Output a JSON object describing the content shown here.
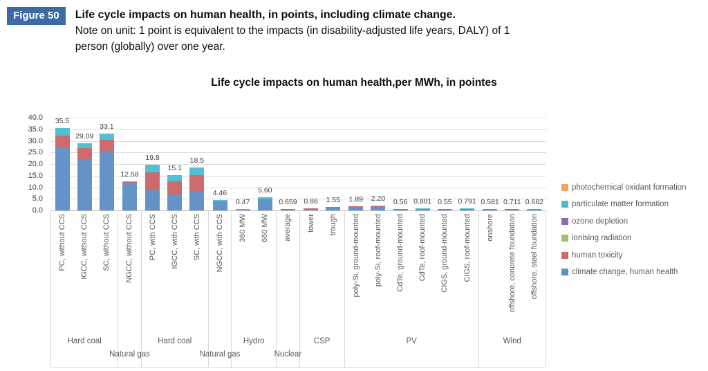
{
  "header": {
    "badge": "Figure 50",
    "title": "Life cycle impacts on human health, in points, including climate change.",
    "note_line1": "Note on unit: 1 point is equivalent to the impacts (in disability-adjusted life years, DALY) of 1",
    "note_line2": "person (globally) over one year."
  },
  "chart_data": {
    "type": "bar",
    "subtype": "stacked",
    "title": "Life cycle impacts on human health,per MWh, in pointes",
    "ylabel": "",
    "xlabel": "",
    "ylim": [
      0,
      40
    ],
    "ytick_labels": [
      "40.0",
      "35.0",
      "30.0",
      "25.0",
      "20.0",
      "15.0",
      "10.0",
      "5.0",
      "0.0"
    ],
    "grid": true,
    "legend_position": "right",
    "legend": [
      {
        "label": "photochemical oxidant formation",
        "color": "#f0a35e"
      },
      {
        "label": "particulate matter formation",
        "color": "#4fbdd1"
      },
      {
        "label": "ozone depletion",
        "color": "#8a6cae"
      },
      {
        "label": "ionising radiation",
        "color": "#a2c065"
      },
      {
        "label": "human toxicity",
        "color": "#cd6a6c"
      },
      {
        "label": "climate change, human health",
        "color": "#5f8fc7"
      }
    ],
    "stack_series": [
      {
        "name": "climate change, human health",
        "color": "#6493c8"
      },
      {
        "name": "human toxicity",
        "color": "#cd6a6c"
      },
      {
        "name": "particulate matter formation",
        "color": "#52bfd3"
      }
    ],
    "groups": [
      {
        "label": "Hard coal",
        "label_row": 1,
        "bars": [
          {
            "label": "PC, without CCS",
            "total_label": "35.5",
            "total": 35.5,
            "segments": [
              27.3,
              5.0,
              3.2
            ]
          },
          {
            "label": "IGCC, without CCS",
            "total_label": "29.09",
            "total": 29.09,
            "segments": [
              21.9,
              5.0,
              2.19
            ]
          },
          {
            "label": "SC, without CCS",
            "total_label": "33.1",
            "total": 33.1,
            "segments": [
              25.5,
              5.0,
              2.6
            ]
          }
        ]
      },
      {
        "label": "Natural gas",
        "label_row": 2,
        "bars": [
          {
            "label": "NGCC, without CCS",
            "total_label": "12.58",
            "total": 12.58,
            "segments": [
              11.8,
              0.45,
              0.33
            ]
          }
        ]
      },
      {
        "label": "Hard coal",
        "label_row": 1,
        "bars": [
          {
            "label": "PC, with CCS",
            "total_label": "19.8",
            "total": 19.8,
            "segments": [
              8.7,
              7.8,
              3.3
            ]
          },
          {
            "label": "IGCC, with CCS",
            "total_label": "15.1",
            "total": 15.1,
            "segments": [
              6.8,
              5.8,
              2.5
            ]
          },
          {
            "label": "SC, with CCS",
            "total_label": "18.5",
            "total": 18.5,
            "segments": [
              8.5,
              6.7,
              3.3
            ]
          }
        ]
      },
      {
        "label": "Natural gas",
        "label_row": 2,
        "bars": [
          {
            "label": "NGCC, with CCS",
            "total_label": "4.46",
            "total": 4.46,
            "segments": [
              3.5,
              0.5,
              0.46
            ]
          }
        ]
      },
      {
        "label": "Hydro",
        "label_row": 1,
        "bars": [
          {
            "label": "360 MW",
            "total_label": "0.47",
            "total": 0.47,
            "segments": [
              0.4,
              0.04,
              0.03
            ]
          },
          {
            "label": "660 MW",
            "total_label": "5.60",
            "total": 5.6,
            "segments": [
              4.35,
              0.4,
              0.85
            ]
          }
        ]
      },
      {
        "label": "Nuclear",
        "label_row": 2,
        "bars": [
          {
            "label": "average",
            "total_label": "0.659",
            "total": 0.659,
            "segments": [
              0.25,
              0.31,
              0.1
            ]
          }
        ]
      },
      {
        "label": "CSP",
        "label_row": 1,
        "bars": [
          {
            "label": "tower",
            "total_label": "0.86",
            "total": 0.86,
            "segments": [
              0.7,
              0.1,
              0.06
            ]
          },
          {
            "label": "trough",
            "total_label": "1.55",
            "total": 1.55,
            "segments": [
              1.25,
              0.2,
              0.1
            ]
          }
        ]
      },
      {
        "label": "PV",
        "label_row": 1,
        "bars": [
          {
            "label": "poly-Si, ground-mounted",
            "total_label": "1.89",
            "total": 1.89,
            "segments": [
              1.15,
              0.5,
              0.24
            ]
          },
          {
            "label": "poly-Si, roof-mounted",
            "total_label": "2.20",
            "total": 2.2,
            "segments": [
              1.3,
              0.6,
              0.3
            ]
          },
          {
            "label": "CdTe, ground-mounted",
            "total_label": "0.56",
            "total": 0.56,
            "segments": [
              0.38,
              0.14,
              0.04
            ]
          },
          {
            "label": "CdTe, roof-mounted",
            "total_label": "0.801",
            "total": 0.801,
            "segments": [
              0.48,
              0.26,
              0.06
            ]
          },
          {
            "label": "CIGS, ground-mounted",
            "total_label": "0.55",
            "total": 0.55,
            "segments": [
              0.36,
              0.15,
              0.04
            ]
          },
          {
            "label": "CIGS, roof-mounted",
            "total_label": "0.791",
            "total": 0.791,
            "segments": [
              0.44,
              0.3,
              0.05
            ]
          }
        ]
      },
      {
        "label": "Wind",
        "label_row": 1,
        "bars": [
          {
            "label": "onshore",
            "total_label": "0.581",
            "total": 0.581,
            "segments": [
              0.44,
              0.1,
              0.04
            ]
          },
          {
            "label": "offshore, concrete foundation",
            "total_label": "0.711",
            "total": 0.711,
            "segments": [
              0.52,
              0.05,
              0.14
            ]
          },
          {
            "label": "offshore, steel foundation",
            "total_label": "0.682",
            "total": 0.682,
            "segments": [
              0.5,
              0.05,
              0.13
            ]
          }
        ]
      }
    ]
  }
}
